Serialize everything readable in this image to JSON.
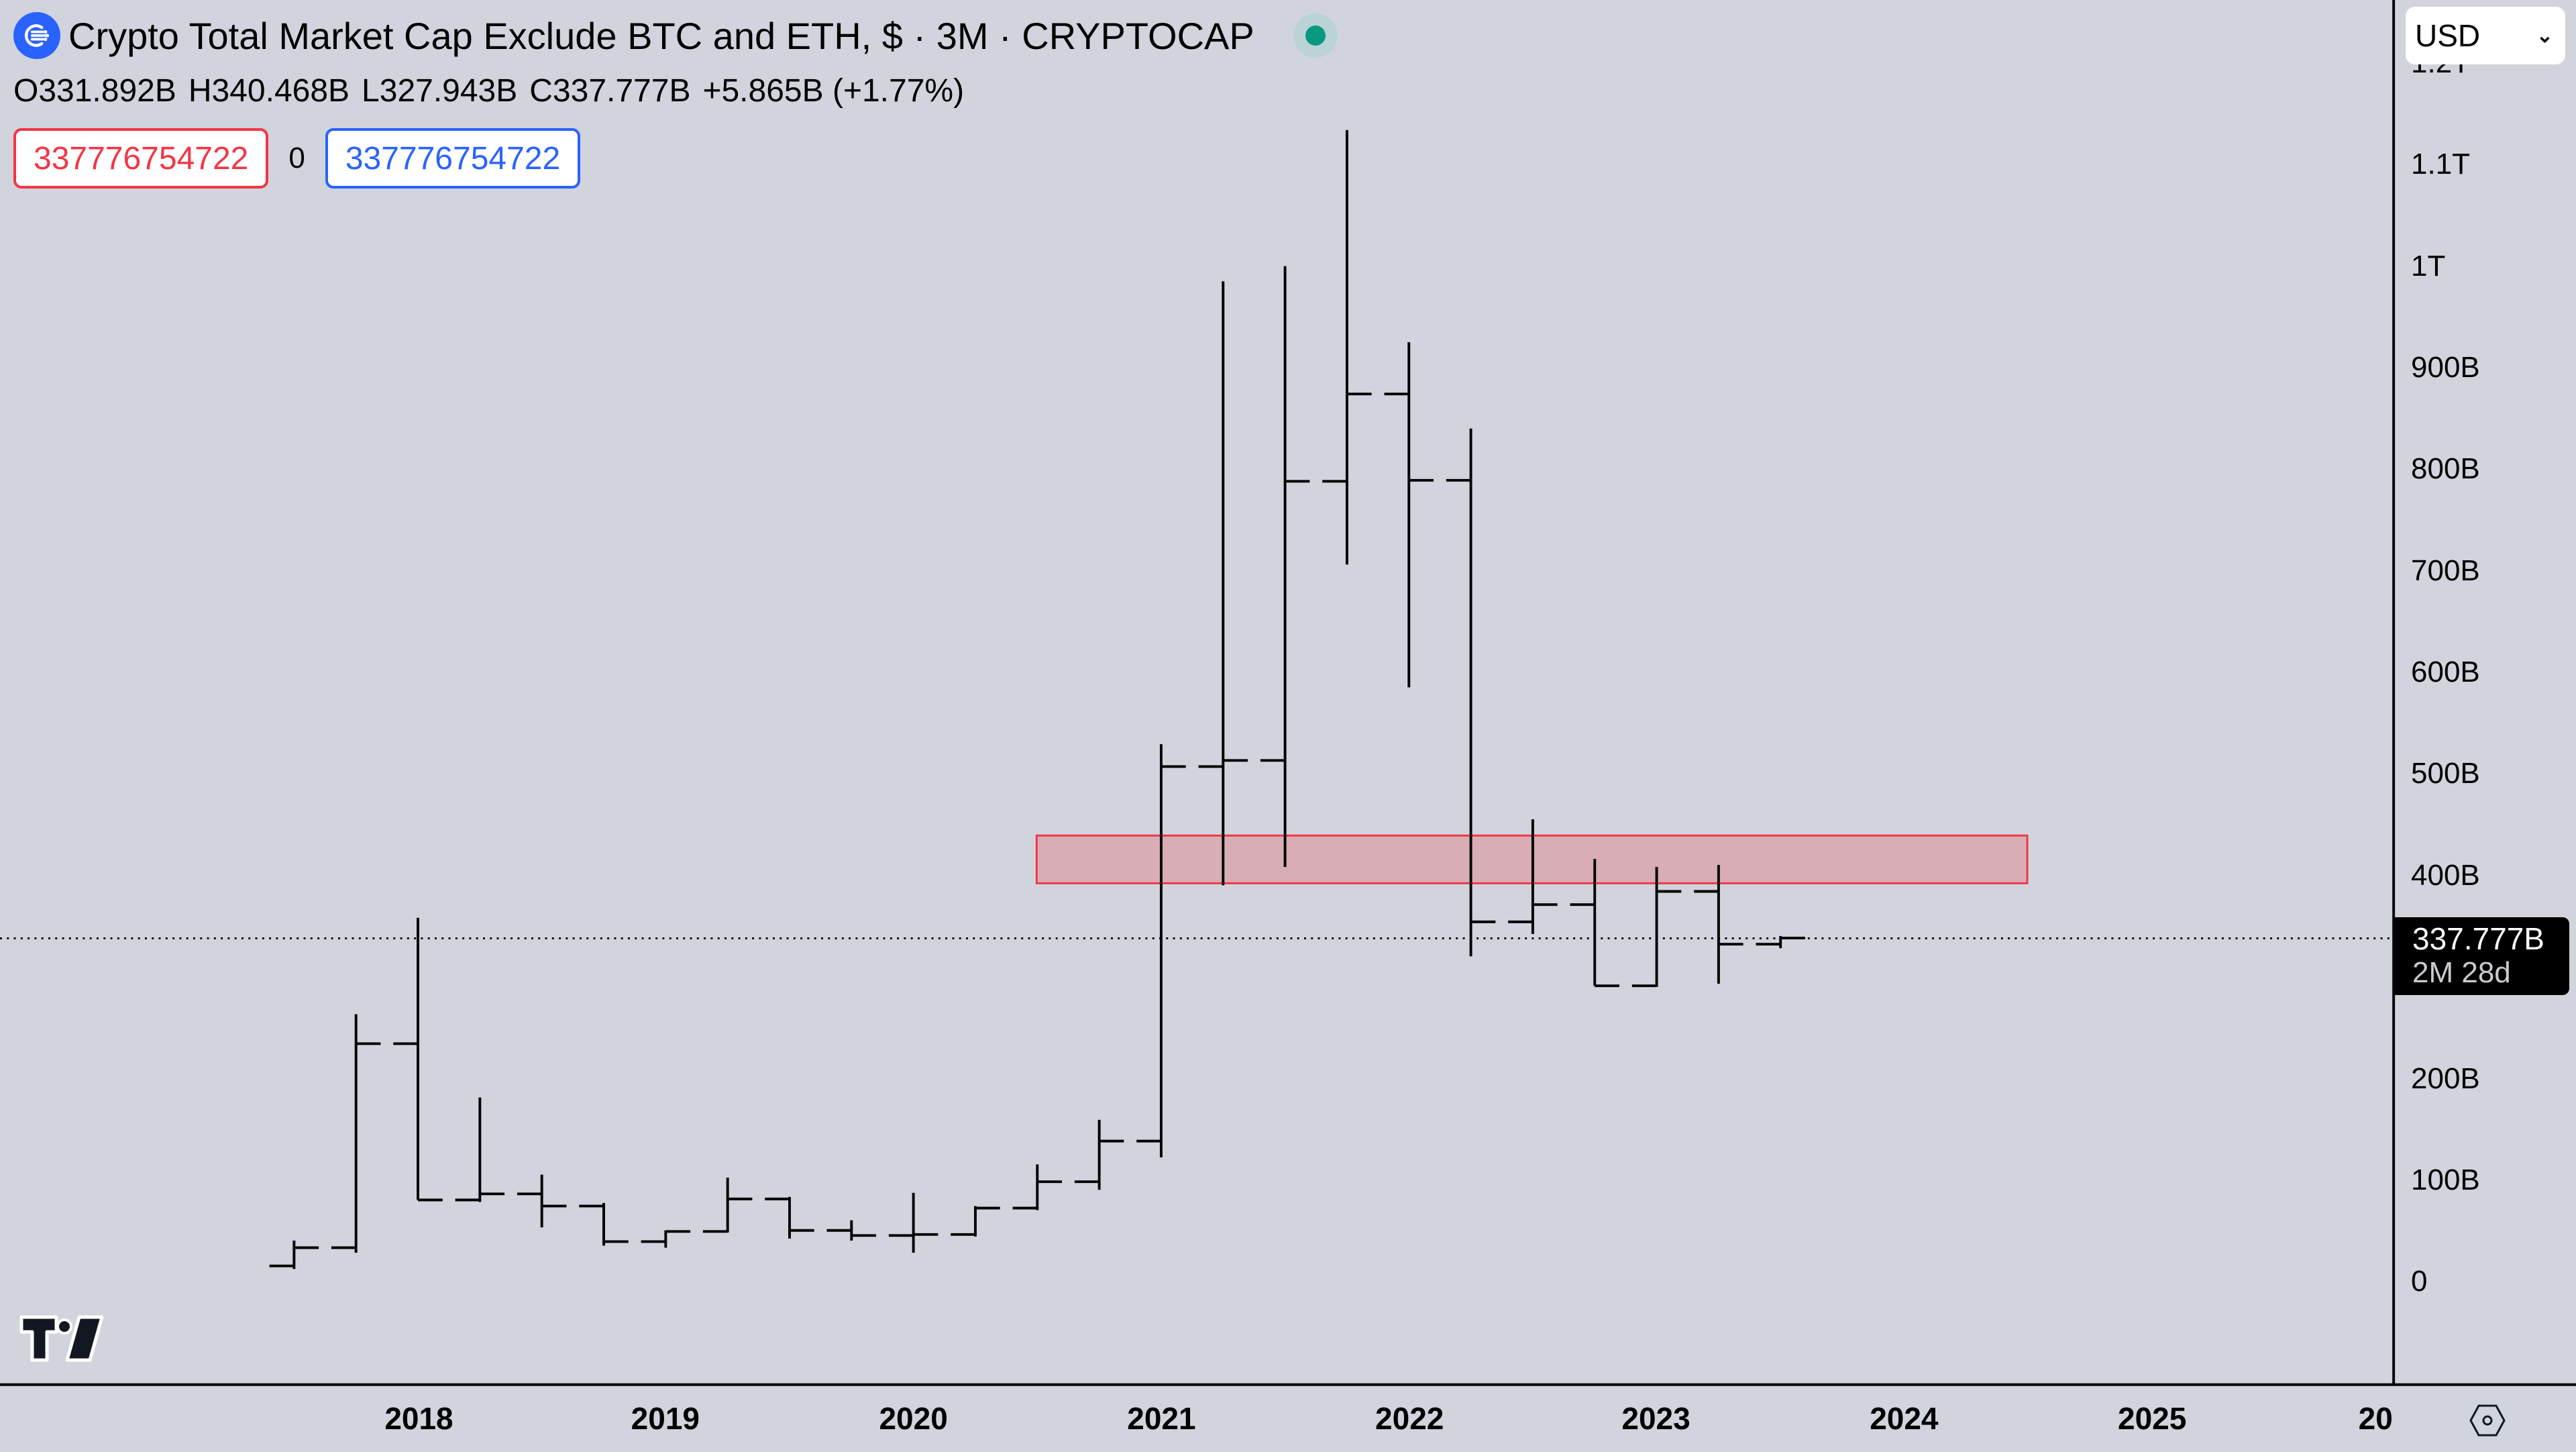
{
  "header": {
    "title": "Crypto Total Market Cap Exclude BTC and ETH, $ · 3M · CRYPTOCAP",
    "logo_icon": "cryptocap-logo-icon",
    "status": "market-open-dot",
    "ohlc": {
      "open": "O331.892B",
      "high": "H340.468B",
      "low": "L327.943B",
      "close": "C337.777B",
      "change": "+5.865B (+1.77%)"
    },
    "inputs": {
      "left_value": "337776754722",
      "middle_value": "0",
      "right_value": "337776754722"
    }
  },
  "price_axis": {
    "currency": "USD",
    "labels": [
      "1.2T",
      "1.1T",
      "1T",
      "900B",
      "800B",
      "700B",
      "600B",
      "500B",
      "400B",
      "200B",
      "100B",
      "0"
    ],
    "last_price": "337.777B",
    "countdown": "2M 28d"
  },
  "time_axis": {
    "labels": [
      "2018",
      "2019",
      "2020",
      "2021",
      "2022",
      "2023",
      "2024",
      "2025",
      "20"
    ]
  },
  "colors": {
    "background": "#d1d4dc",
    "bars": "#000000",
    "zone_fill": "#f2364540",
    "zone_border": "#f23645",
    "accent_blue": "#2962ff",
    "status_green": "#089981"
  },
  "chart_data": {
    "type": "ohlc",
    "title": "Crypto Total Market Cap Exclude BTC and ETH, $ · 3M · CRYPTOCAP",
    "xlabel": "",
    "ylabel": "USD",
    "ylim": [
      -100,
      1250
    ],
    "unit": "B",
    "grid": false,
    "categories": [
      "2017Q3",
      "2017Q4",
      "2018Q1",
      "2018Q2",
      "2018Q3",
      "2018Q4",
      "2019Q1",
      "2019Q2",
      "2019Q3",
      "2019Q4",
      "2020Q1",
      "2020Q2",
      "2020Q3",
      "2020Q4",
      "2021Q1",
      "2021Q2",
      "2021Q3",
      "2021Q4",
      "2022Q1",
      "2022Q2",
      "2022Q3",
      "2022Q4",
      "2023Q1",
      "2023Q2",
      "2023Q3"
    ],
    "series": [
      {
        "name": "open",
        "values": [
          15,
          33,
          234,
          80,
          86,
          74,
          39,
          49,
          81,
          50,
          45,
          46,
          72,
          98,
          138,
          507,
          513,
          788,
          874,
          789,
          354,
          371,
          291,
          384,
          332
        ]
      },
      {
        "name": "high",
        "values": [
          40,
          263,
          358,
          181,
          105,
          77,
          50,
          102,
          83,
          60,
          87,
          74,
          115,
          159,
          529,
          985,
          1000,
          1134,
          925,
          840,
          455,
          416,
          408,
          410,
          340
        ]
      },
      {
        "name": "low",
        "values": [
          12,
          28,
          80,
          78,
          53,
          35,
          33,
          48,
          42,
          40,
          28,
          44,
          70,
          90,
          122,
          390,
          408,
          706,
          585,
          320,
          342,
          291,
          290,
          293,
          328
        ]
      },
      {
        "name": "close",
        "values": [
          33,
          234,
          80,
          86,
          74,
          39,
          49,
          81,
          50,
          45,
          46,
          72,
          98,
          138,
          507,
          513,
          788,
          874,
          789,
          354,
          371,
          291,
          384,
          332,
          338
        ]
      }
    ],
    "annotations": [
      {
        "type": "rectangle",
        "from": "2020Q3",
        "to": "2024Q3",
        "y_top": 439,
        "y_bottom": 392,
        "color": "#f23645"
      },
      {
        "type": "hline-dotted",
        "y": 337.777,
        "label": "337.777B"
      }
    ],
    "y_ticks": {
      "1.2T": 1200,
      "1.1T": 1100,
      "1T": 1000,
      "900B": 900,
      "800B": 800,
      "700B": 700,
      "600B": 600,
      "500B": 500,
      "400B": 400,
      "200B": 200,
      "100B": 100,
      "0": 0
    }
  }
}
